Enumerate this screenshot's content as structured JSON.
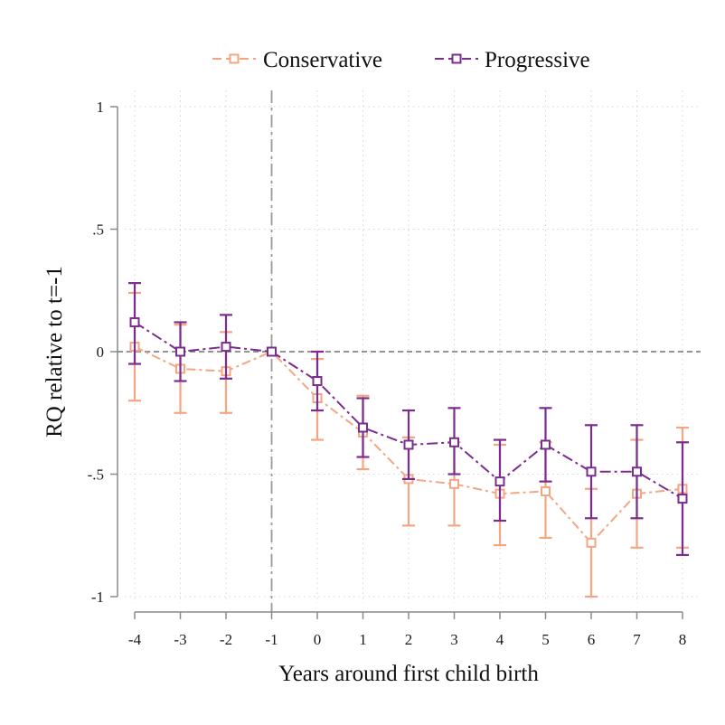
{
  "chart_data": {
    "type": "line",
    "xlabel": "Years around first child birth",
    "ylabel": "RQ relative to t=-1",
    "x": [
      -4,
      -3,
      -2,
      -1,
      0,
      1,
      2,
      3,
      4,
      5,
      6,
      7,
      8
    ],
    "x_tick_labels": [
      "-4",
      "-3",
      "-2",
      "-1",
      "0",
      "1",
      "2",
      "3",
      "4",
      "5",
      "6",
      "7",
      "8"
    ],
    "y_ticks": [
      -1,
      -0.5,
      0,
      0.5,
      1
    ],
    "y_tick_labels": [
      "-1",
      "-.5",
      "0",
      ".5",
      "1"
    ],
    "xlim": [
      -4.35,
      8.35
    ],
    "ylim": [
      -1.06,
      1.06
    ],
    "grid": true,
    "reference_lines": {
      "vertical_x": -1,
      "horizontal_y": 0
    },
    "legend_position": "top",
    "series": [
      {
        "name": "Conservative",
        "color": "#F4A582",
        "values": [
          0.02,
          -0.07,
          -0.08,
          0.0,
          -0.19,
          -0.33,
          -0.52,
          -0.54,
          -0.58,
          -0.57,
          -0.78,
          -0.58,
          -0.56
        ],
        "ci_low": [
          -0.2,
          -0.25,
          -0.25,
          0.0,
          -0.36,
          -0.48,
          -0.71,
          -0.71,
          -0.79,
          -0.76,
          -1.0,
          -0.8,
          -0.8
        ],
        "ci_high": [
          0.24,
          0.11,
          0.08,
          0.0,
          -0.03,
          -0.18,
          -0.35,
          -0.37,
          -0.38,
          -0.37,
          -0.56,
          -0.36,
          -0.31
        ]
      },
      {
        "name": "Progressive",
        "color": "#7B2D8E",
        "values": [
          0.12,
          0.0,
          0.02,
          0.0,
          -0.12,
          -0.31,
          -0.38,
          -0.37,
          -0.53,
          -0.38,
          -0.49,
          -0.49,
          -0.6
        ],
        "ci_low": [
          -0.05,
          -0.12,
          -0.11,
          0.0,
          -0.24,
          -0.43,
          -0.52,
          -0.5,
          -0.69,
          -0.53,
          -0.68,
          -0.68,
          -0.83
        ],
        "ci_high": [
          0.28,
          0.12,
          0.15,
          0.0,
          0.0,
          -0.19,
          -0.24,
          -0.23,
          -0.36,
          -0.23,
          -0.3,
          -0.3,
          -0.37
        ]
      }
    ]
  }
}
